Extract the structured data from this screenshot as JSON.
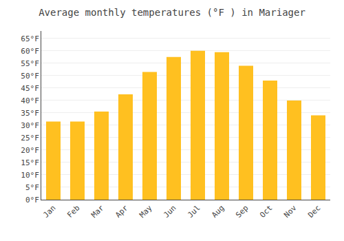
{
  "chart_data": {
    "type": "bar",
    "title": "Average monthly temperatures (°F ) in Mariager",
    "categories": [
      "Jan",
      "Feb",
      "Mar",
      "Apr",
      "May",
      "Jun",
      "Jul",
      "Aug",
      "Sep",
      "Oct",
      "Nov",
      "Dec"
    ],
    "values": [
      31.5,
      31.5,
      35.5,
      42.5,
      51.5,
      57.5,
      60.0,
      59.5,
      54.0,
      48.0,
      40.0,
      34.0
    ],
    "color": "#FFC020",
    "ylim": [
      0,
      68
    ],
    "yticks": [
      {
        "value": 0,
        "label": "0°F"
      },
      {
        "value": 5,
        "label": "5°F"
      },
      {
        "value": 10,
        "label": "10°F"
      },
      {
        "value": 15,
        "label": "15°F"
      },
      {
        "value": 20,
        "label": "20°F"
      },
      {
        "value": 25,
        "label": "25°F"
      },
      {
        "value": 30,
        "label": "30°F"
      },
      {
        "value": 35,
        "label": "35°F"
      },
      {
        "value": 40,
        "label": "40°F"
      },
      {
        "value": 45,
        "label": "45°F"
      },
      {
        "value": 50,
        "label": "50°F"
      },
      {
        "value": 55,
        "label": "55°F"
      },
      {
        "value": 60,
        "label": "60°F"
      },
      {
        "value": 65,
        "label": "65°F"
      }
    ],
    "grid": true
  }
}
